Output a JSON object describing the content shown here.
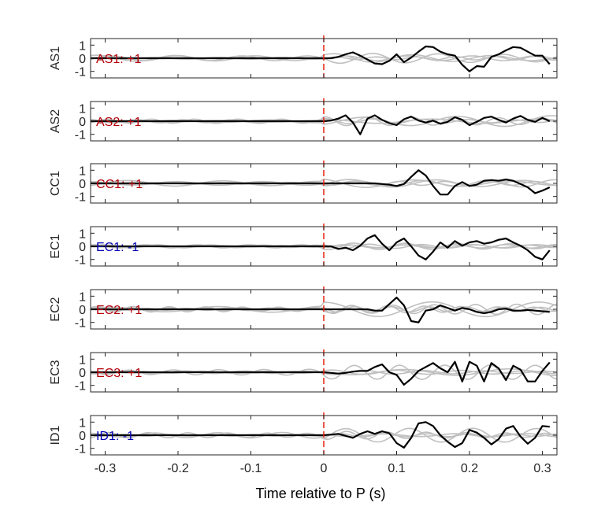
{
  "chart_data": {
    "type": "line",
    "xlabel": "Time relative to P (s)",
    "xlim": [
      -0.32,
      0.32
    ],
    "ylim": [
      -1.5,
      1.5
    ],
    "xticks": [
      "-0.3",
      "-0.2",
      "-0.1",
      "0",
      "0.1",
      "0.2",
      "0.3"
    ],
    "xtick_values": [
      -0.3,
      -0.2,
      -0.1,
      0,
      0.1,
      0.2,
      0.3
    ],
    "yticks": [
      "-1",
      "0",
      "1"
    ],
    "ytick_values": [
      -1,
      0,
      1
    ],
    "marker_time": 0,
    "colors": {
      "trace": "#000000",
      "background": "#c0c0c0",
      "marker": "#e8210f",
      "positive": "#b4000a",
      "negative": "#0000b4"
    },
    "panels": [
      {
        "ylabel": "AS1",
        "annotation": "AS1: +1",
        "polarity": "positive",
        "series_x": [
          0,
          0.01,
          0.02,
          0.03,
          0.04,
          0.05,
          0.06,
          0.07,
          0.08,
          0.09,
          0.1,
          0.11,
          0.12,
          0.13,
          0.14,
          0.15,
          0.16,
          0.17,
          0.18,
          0.19,
          0.2,
          0.21,
          0.22,
          0.23,
          0.24,
          0.25,
          0.26,
          0.27,
          0.28,
          0.29,
          0.3,
          0.31
        ],
        "series_y": [
          0,
          0,
          0.1,
          0.3,
          0.45,
          0.2,
          -0.1,
          -0.4,
          -0.45,
          -0.2,
          0.3,
          -0.3,
          0.05,
          0.5,
          0.9,
          0.85,
          0.5,
          0.3,
          0.2,
          -0.5,
          -1.0,
          -0.6,
          -0.65,
          0.1,
          0.3,
          0.6,
          0.85,
          0.8,
          0.5,
          0.2,
          0.2,
          -0.45
        ]
      },
      {
        "ylabel": "AS2",
        "annotation": "AS2: +1",
        "polarity": "positive",
        "series_x": [
          0,
          0.01,
          0.02,
          0.03,
          0.04,
          0.05,
          0.06,
          0.07,
          0.08,
          0.09,
          0.1,
          0.11,
          0.12,
          0.13,
          0.14,
          0.15,
          0.16,
          0.17,
          0.18,
          0.19,
          0.2,
          0.21,
          0.22,
          0.23,
          0.24,
          0.25,
          0.26,
          0.27,
          0.28,
          0.29,
          0.3,
          0.31
        ],
        "series_y": [
          0,
          0.05,
          0.2,
          0.45,
          -0.1,
          -1.0,
          0.2,
          0.45,
          0.1,
          -0.15,
          -0.3,
          0.15,
          0.35,
          0.05,
          -0.1,
          0.05,
          -0.2,
          -0.05,
          0.3,
          0.1,
          -0.3,
          -0.05,
          0.25,
          0.35,
          0.1,
          -0.1,
          0.2,
          0.4,
          0.1,
          -0.05,
          0.25,
          0.0
        ]
      },
      {
        "ylabel": "CC1",
        "annotation": "CC1: +1",
        "polarity": "positive",
        "series_x": [
          0,
          0.01,
          0.02,
          0.03,
          0.04,
          0.05,
          0.06,
          0.07,
          0.08,
          0.09,
          0.1,
          0.11,
          0.12,
          0.13,
          0.14,
          0.15,
          0.16,
          0.17,
          0.18,
          0.19,
          0.2,
          0.21,
          0.22,
          0.23,
          0.24,
          0.25,
          0.26,
          0.27,
          0.28,
          0.29,
          0.3,
          0.31
        ],
        "series_y": [
          0,
          0,
          0,
          0,
          0,
          0,
          0,
          0,
          -0.05,
          -0.1,
          -0.2,
          -0.05,
          0.5,
          1.0,
          0.6,
          -0.2,
          -0.85,
          -0.85,
          -0.2,
          0.1,
          -0.2,
          -0.1,
          0.2,
          0.25,
          0.2,
          0.3,
          0.2,
          -0.05,
          -0.3,
          -0.75,
          -0.55,
          -0.3
        ]
      },
      {
        "ylabel": "EC1",
        "annotation": "EC1: -1",
        "polarity": "negative",
        "series_x": [
          0,
          0.01,
          0.02,
          0.03,
          0.04,
          0.05,
          0.06,
          0.07,
          0.08,
          0.09,
          0.1,
          0.11,
          0.12,
          0.13,
          0.14,
          0.15,
          0.16,
          0.17,
          0.18,
          0.19,
          0.2,
          0.21,
          0.22,
          0.23,
          0.24,
          0.25,
          0.26,
          0.27,
          0.28,
          0.29,
          0.3,
          0.31
        ],
        "series_y": [
          0,
          0,
          -0.2,
          -0.1,
          -0.3,
          0.05,
          0.6,
          0.85,
          0.2,
          -0.3,
          0.3,
          0.6,
          0.0,
          -0.7,
          -1.0,
          -0.4,
          0.3,
          -0.1,
          0.4,
          0.05,
          0.3,
          0.4,
          0.2,
          0.3,
          0.5,
          0.6,
          0.3,
          0.05,
          -0.3,
          -0.8,
          -1.0,
          -0.3
        ]
      },
      {
        "ylabel": "EC2",
        "annotation": "EC2: +1",
        "polarity": "positive",
        "series_x": [
          0,
          0.01,
          0.02,
          0.03,
          0.04,
          0.05,
          0.06,
          0.07,
          0.08,
          0.09,
          0.1,
          0.11,
          0.12,
          0.13,
          0.14,
          0.15,
          0.16,
          0.17,
          0.18,
          0.19,
          0.2,
          0.21,
          0.22,
          0.23,
          0.24,
          0.25,
          0.26,
          0.27,
          0.28,
          0.29,
          0.3,
          0.31
        ],
        "series_y": [
          0,
          0,
          0,
          0,
          0,
          0,
          0,
          -0.1,
          -0.1,
          0.4,
          0.9,
          0.3,
          -0.9,
          -1.0,
          -0.1,
          0.0,
          0.3,
          0.1,
          -0.1,
          0.1,
          0.0,
          -0.2,
          -0.3,
          -0.2,
          0.0,
          0.05,
          -0.1,
          -0.1,
          -0.05,
          -0.1,
          -0.15,
          -0.2
        ]
      },
      {
        "ylabel": "EC3",
        "annotation": "EC3: +1",
        "polarity": "positive",
        "series_x": [
          0,
          0.01,
          0.02,
          0.03,
          0.04,
          0.05,
          0.06,
          0.07,
          0.08,
          0.09,
          0.1,
          0.11,
          0.12,
          0.13,
          0.14,
          0.15,
          0.16,
          0.17,
          0.18,
          0.19,
          0.2,
          0.21,
          0.22,
          0.23,
          0.24,
          0.25,
          0.26,
          0.27,
          0.28,
          0.29,
          0.3,
          0.31
        ],
        "series_y": [
          0,
          -0.05,
          -0.1,
          -0.05,
          0.05,
          0.1,
          0.1,
          0.4,
          0.6,
          0.0,
          -0.2,
          -0.95,
          -0.5,
          0.1,
          0.4,
          0.7,
          0.3,
          0.0,
          0.8,
          -0.7,
          0.8,
          0.5,
          -0.7,
          0.7,
          0.3,
          -0.6,
          0.5,
          0.2,
          -0.7,
          -0.7,
          0.1,
          0.75
        ]
      },
      {
        "ylabel": "ID1",
        "annotation": "ID1: -1",
        "polarity": "negative",
        "series_x": [
          0,
          0.01,
          0.02,
          0.03,
          0.04,
          0.05,
          0.06,
          0.07,
          0.08,
          0.09,
          0.1,
          0.11,
          0.12,
          0.13,
          0.14,
          0.15,
          0.16,
          0.17,
          0.18,
          0.19,
          0.2,
          0.21,
          0.22,
          0.23,
          0.24,
          0.25,
          0.26,
          0.27,
          0.28,
          0.29,
          0.3,
          0.31
        ],
        "series_y": [
          0,
          0.05,
          0.1,
          -0.05,
          -0.2,
          0.1,
          0.3,
          0.1,
          0.3,
          0.15,
          -0.6,
          -0.95,
          -0.2,
          0.9,
          1.0,
          0.7,
          0.0,
          -0.5,
          -0.9,
          -0.6,
          0.4,
          0.2,
          -0.2,
          -0.7,
          -0.3,
          0.5,
          0.7,
          -0.1,
          -0.65,
          -0.2,
          0.7,
          0.65
        ]
      }
    ]
  }
}
